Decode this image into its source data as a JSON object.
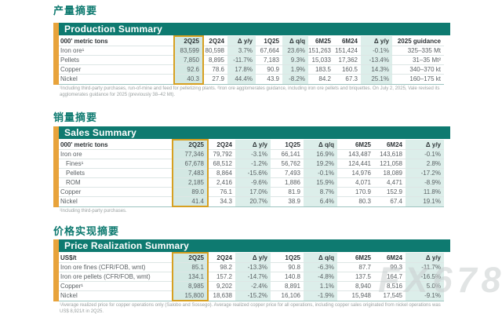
{
  "watermark": {
    "text": "FX678"
  },
  "colors": {
    "brand_teal": "#0E7A70",
    "accent_bar_orange": "#E8A33B",
    "highlight_border_yellow": "#D7A021",
    "tint_column_teal": "#DCEEEA",
    "highlight_column_teal": "#D3E8E3"
  },
  "sections": [
    {
      "zh_title": "产量摘要",
      "en_title": "Production Summary",
      "unit_header": "000' metric tons",
      "columns": [
        "2Q25",
        "2Q24",
        "Δ y/y",
        "1Q25",
        "Δ q/q",
        "6M25",
        "6M24",
        "Δ y/y",
        "2025 guidance"
      ],
      "rows": [
        {
          "label": "Iron ore¹",
          "indent": false,
          "values": [
            "83,599",
            "80,598",
            "3.7%",
            "67,664",
            "23.6%",
            "151,263",
            "151,424",
            "-0.1%",
            "325–335 Mt"
          ]
        },
        {
          "label": "Pellets",
          "indent": false,
          "values": [
            "7,850",
            "8,895",
            "-11.7%",
            "7,183",
            "9.3%",
            "15,033",
            "17,362",
            "-13.4%",
            "31–35 Mt²"
          ]
        },
        {
          "label": "Copper",
          "indent": false,
          "values": [
            "92.6",
            "78.6",
            "17.8%",
            "90.9",
            "1.9%",
            "183.5",
            "160.5",
            "14.3%",
            "340–370 kt"
          ]
        },
        {
          "label": "Nickel",
          "indent": false,
          "values": [
            "40.3",
            "27.9",
            "44.4%",
            "43.9",
            "-8.2%",
            "84.2",
            "67.3",
            "25.1%",
            "160–175 kt"
          ]
        }
      ],
      "footnote": "¹Including third-party purchases, run-of-mine and feed for pelletizing plants. ²Iron ore agglomerates guidance, including iron ore pellets and briquettes. On July 2, 2025, Vale revised its agglomerates guidance for 2025 (previously 38–42 Mt)."
    },
    {
      "zh_title": "销量摘要",
      "en_title": "Sales Summary",
      "unit_header": "000' metric tons",
      "columns": [
        "2Q25",
        "2Q24",
        "Δ y/y",
        "1Q25",
        "Δ q/q",
        "6M25",
        "6M24",
        "Δ y/y"
      ],
      "rows": [
        {
          "label": "Iron ore",
          "indent": false,
          "values": [
            "77,346",
            "79,792",
            "-3.1%",
            "66,141",
            "16.9%",
            "143,487",
            "143,618",
            "-0.1%"
          ]
        },
        {
          "label": "Fines¹",
          "indent": true,
          "values": [
            "67,678",
            "68,512",
            "-1.2%",
            "56,762",
            "19.2%",
            "124,441",
            "121,058",
            "2.8%"
          ]
        },
        {
          "label": "Pellets",
          "indent": true,
          "values": [
            "7,483",
            "8,864",
            "-15.6%",
            "7,493",
            "-0.1%",
            "14,976",
            "18,089",
            "-17.2%"
          ]
        },
        {
          "label": "ROM",
          "indent": true,
          "values": [
            "2,185",
            "2,416",
            "-9.6%",
            "1,886",
            "15.9%",
            "4,071",
            "4,471",
            "-8.9%"
          ]
        },
        {
          "label": "Copper",
          "indent": false,
          "values": [
            "89.0",
            "76.1",
            "17.0%",
            "81.9",
            "8.7%",
            "170.9",
            "152.9",
            "11.8%"
          ]
        },
        {
          "label": "Nickel",
          "indent": false,
          "values": [
            "41.4",
            "34.3",
            "20.7%",
            "38.9",
            "6.4%",
            "80.3",
            "67.4",
            "19.1%"
          ]
        }
      ],
      "footnote": "¹Including third-party purchases."
    },
    {
      "zh_title": "价格实现摘要",
      "en_title": "Price Realization Summary",
      "unit_header": "US$/t",
      "columns": [
        "2Q25",
        "2Q24",
        "Δ y/y",
        "1Q25",
        "Δ q/q",
        "6M25",
        "6M24",
        "Δ y/y"
      ],
      "rows": [
        {
          "label": "Iron ore fines (CFR/FOB, wmt)",
          "indent": false,
          "values": [
            "85.1",
            "98.2",
            "-13.3%",
            "90.8",
            "-6.3%",
            "87.7",
            "99.3",
            "-11.7%"
          ]
        },
        {
          "label": "Iron ore pellets (CFR/FOB, wmt)",
          "indent": false,
          "values": [
            "134.1",
            "157.2",
            "-14.7%",
            "140.8",
            "-4.8%",
            "137.5",
            "164.7",
            "-16.5%"
          ]
        },
        {
          "label": "Copper¹",
          "indent": false,
          "values": [
            "8,985",
            "9,202",
            "-2.4%",
            "8,891",
            "1.1%",
            "8,940",
            "8,516",
            "5.0%"
          ]
        },
        {
          "label": "Nickel",
          "indent": false,
          "values": [
            "15,800",
            "18,638",
            "-15.2%",
            "16,106",
            "-1.9%",
            "15,948",
            "17,545",
            "-9.1%"
          ]
        }
      ],
      "footnote": "¹Average realized price for copper operations only (Salobo and Sossego). Average realized copper price for all operations, including copper sales originated from nickel operations was US$ 8,921/t in 2Q25."
    }
  ]
}
